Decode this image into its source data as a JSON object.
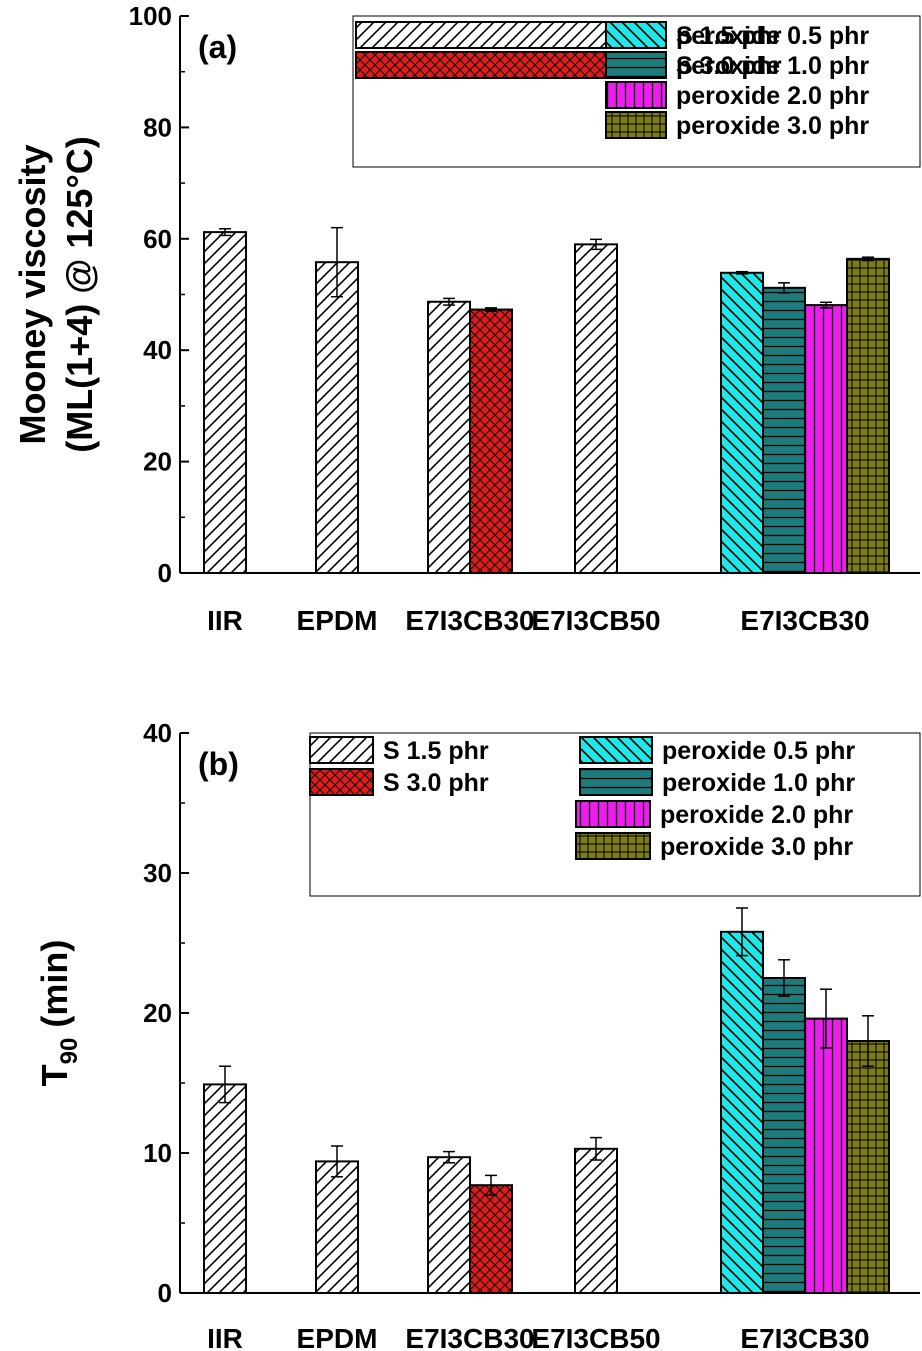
{
  "chart_data": [
    {
      "panel": "(a)",
      "type": "bar",
      "ylabel": "Mooney viscosity\n(ML(1+4) @ 125°C)",
      "ylim": [
        0,
        100
      ],
      "yticks": [
        0,
        20,
        40,
        60,
        80,
        100
      ],
      "grid": false,
      "legend_position": "top-right",
      "groups": [
        "IIR",
        "EPDM",
        "E7I3CB30",
        "E7I3CB50",
        "E7I3CB30"
      ],
      "series": [
        {
          "name": "S 1.5 phr",
          "pattern": "diag-right",
          "color": "#ffffff",
          "values": [
            61.2,
            55.8,
            48.7,
            59.0,
            null
          ],
          "errors": [
            0.6,
            6.2,
            0.6,
            0.9,
            null
          ]
        },
        {
          "name": "S 3.0 phr",
          "pattern": "crosshatch",
          "color": "#e51b1b",
          "values": [
            null,
            null,
            47.3,
            null,
            null
          ],
          "errors": [
            null,
            null,
            0.3,
            null,
            null
          ]
        },
        {
          "name": "peroxide 0.5 phr",
          "pattern": "diag-left",
          "color": "#21e8e8",
          "values": [
            null,
            null,
            null,
            null,
            53.9
          ],
          "errors": [
            null,
            null,
            null,
            null,
            0.2
          ]
        },
        {
          "name": "peroxide 1.0 phr",
          "pattern": "horizontal",
          "color": "#1e7b7b",
          "values": [
            null,
            null,
            null,
            null,
            51.2
          ],
          "errors": [
            null,
            null,
            null,
            null,
            0.9
          ]
        },
        {
          "name": "peroxide 2.0 phr",
          "pattern": "vertical",
          "color": "#ee1cee",
          "values": [
            null,
            null,
            null,
            null,
            48.1
          ],
          "errors": [
            null,
            null,
            null,
            null,
            0.5
          ]
        },
        {
          "name": "peroxide 3.0 phr",
          "pattern": "grid",
          "color": "#7b7b1c",
          "values": [
            null,
            null,
            null,
            null,
            56.4
          ],
          "errors": [
            null,
            null,
            null,
            null,
            0.3
          ]
        }
      ]
    },
    {
      "panel": "(b)",
      "type": "bar",
      "ylabel": "T",
      "ylabel_sub": "90",
      "ylabel_suffix": " (min)",
      "ylim": [
        0,
        40
      ],
      "yticks": [
        0,
        10,
        20,
        30,
        40
      ],
      "grid": false,
      "legend_position": "top-right",
      "groups": [
        "IIR",
        "EPDM",
        "E7I3CB30",
        "E7I3CB50",
        "E7I3CB30"
      ],
      "series": [
        {
          "name": "S 1.5 phr",
          "pattern": "diag-right",
          "color": "#ffffff",
          "values": [
            14.9,
            9.4,
            9.7,
            10.3,
            null
          ],
          "errors": [
            1.3,
            1.1,
            0.4,
            0.8,
            null
          ]
        },
        {
          "name": "S 3.0 phr",
          "pattern": "crosshatch",
          "color": "#e51b1b",
          "values": [
            null,
            null,
            7.7,
            null,
            null
          ],
          "errors": [
            null,
            null,
            0.7,
            null,
            null
          ]
        },
        {
          "name": "peroxide 0.5 phr",
          "pattern": "diag-left",
          "color": "#21e8e8",
          "values": [
            null,
            null,
            null,
            null,
            25.8
          ],
          "errors": [
            null,
            null,
            null,
            null,
            1.7
          ]
        },
        {
          "name": "peroxide 1.0 phr",
          "pattern": "horizontal",
          "color": "#1e7b7b",
          "values": [
            null,
            null,
            null,
            null,
            22.5
          ],
          "errors": [
            null,
            null,
            null,
            null,
            1.3
          ]
        },
        {
          "name": "peroxide 2.0 phr",
          "pattern": "vertical",
          "color": "#ee1cee",
          "values": [
            null,
            null,
            null,
            null,
            19.6
          ],
          "errors": [
            null,
            null,
            null,
            null,
            2.1
          ]
        },
        {
          "name": "peroxide 3.0 phr",
          "pattern": "grid",
          "color": "#7b7b1c",
          "values": [
            null,
            null,
            null,
            null,
            18.0
          ],
          "errors": [
            null,
            null,
            null,
            null,
            1.8
          ]
        }
      ]
    }
  ]
}
